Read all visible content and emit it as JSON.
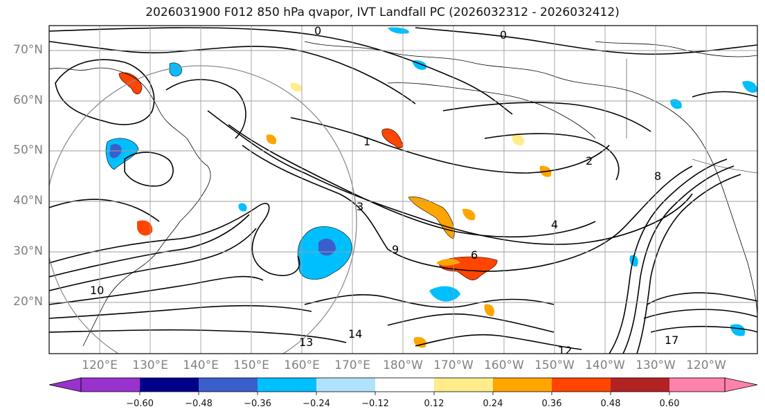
{
  "title": "2026031900 F012 850 hPa qvapor, IVT Landfall PC (2026032312 - 2026032412)",
  "lat_labels": [
    "70°N",
    "60°N",
    "50°N",
    "40°N",
    "30°N",
    "20°N"
  ],
  "lon_labels": [
    "120°E",
    "130°E",
    "140°E",
    "150°E",
    "160°E",
    "170°E",
    "180°W",
    "170°W",
    "160°W",
    "150°W",
    "140°W",
    "130°W",
    "120°W"
  ],
  "contour_labels": [
    "0",
    "0",
    "1",
    "2",
    "3",
    "4",
    "6",
    "8",
    "9",
    "10",
    "12",
    "13",
    "14",
    "17"
  ],
  "colorbar": {
    "tick_labels": [
      "−0.60",
      "−0.48",
      "−0.36",
      "−0.24",
      "−0.12",
      "0.12",
      "0.24",
      "0.36",
      "0.48",
      "0.60"
    ],
    "colors": [
      "#9932CC",
      "#00008B",
      "#3A5FCD",
      "#00BFFF",
      "#B0E2FF",
      "#FFFFFF",
      "#FFEC8B",
      "#FFA500",
      "#FF4500",
      "#B22222",
      "#FF82AB"
    ]
  },
  "accent_colors": {
    "grid": "#9E9E9E",
    "contour": "#000000",
    "circle": "#8C8C8C",
    "axis_label": "#808080"
  }
}
